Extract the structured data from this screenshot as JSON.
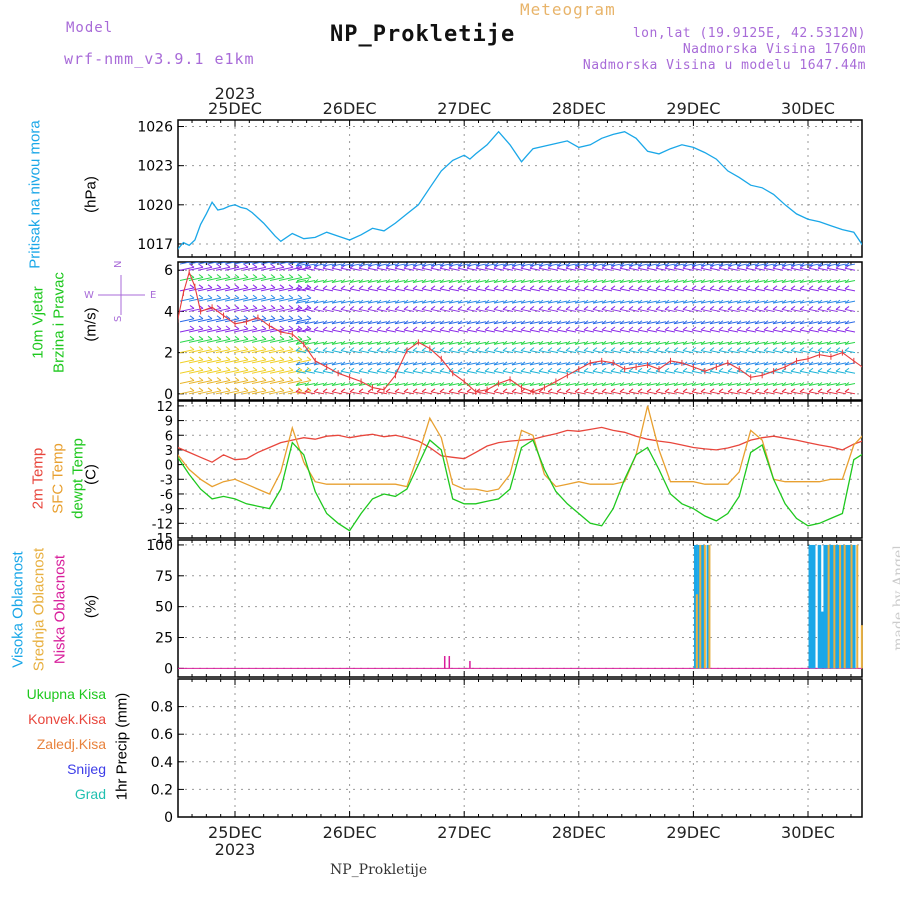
{
  "header": {
    "model_label": "Model",
    "model_name": "wrf-nmm_v3.9.1 e1km",
    "title": "NP_Prokletije",
    "meteogram_label": "Meteogram",
    "lonlat": "lon,lat (19.9125E, 42.5312N)",
    "altitude": "Nadmorska Visina 1760m",
    "model_altitude": "Nadmorska Visina u modelu 1647.44m"
  },
  "time_axis": {
    "year": "2023",
    "day_labels": [
      "25DEC",
      "26DEC",
      "27DEC",
      "28DEC",
      "29DEC",
      "30DEC"
    ]
  },
  "footer": "NP_Prokletije",
  "watermark": "made by Angel",
  "colors": {
    "pressure": "#1aa7e8",
    "temp2m": "#e8463c",
    "sfc": "#e8a030",
    "dew": "#1ec81e",
    "high_cloud": "#1aa7e8",
    "mid_cloud": "#e8b040",
    "low_cloud": "#d81e9b",
    "purple": "#a86bd8",
    "wind_speed": "#e83c3c"
  },
  "chart_data": [
    {
      "type": "line",
      "panel": "pressure",
      "title": "",
      "ylabel_lines": [
        "Pritisak na nivou mora",
        "(hPa)"
      ],
      "ylim": [
        1016,
        1026.5
      ],
      "yticks": [
        1017,
        1020,
        1023,
        1026
      ],
      "grid": true,
      "xunit": "day index (0 = 25DEC 00UTC)",
      "x": [
        -0.5,
        -0.45,
        -0.4,
        -0.35,
        -0.3,
        -0.25,
        -0.2,
        -0.15,
        -0.1,
        -0.05,
        0,
        0.05,
        0.1,
        0.15,
        0.2,
        0.25,
        0.3,
        0.35,
        0.4,
        0.5,
        0.6,
        0.7,
        0.8,
        0.9,
        1.0,
        1.1,
        1.2,
        1.3,
        1.4,
        1.5,
        1.6,
        1.7,
        1.8,
        1.9,
        2.0,
        2.05,
        2.1,
        2.2,
        2.3,
        2.4,
        2.5,
        2.55,
        2.6,
        2.7,
        2.8,
        2.9,
        3.0,
        3.1,
        3.2,
        3.3,
        3.4,
        3.5,
        3.6,
        3.7,
        3.8,
        3.9,
        4.0,
        4.1,
        4.2,
        4.3,
        4.4,
        4.5,
        4.6,
        4.7,
        4.8,
        4.9,
        5.0,
        5.1,
        5.2,
        5.3,
        5.4,
        5.5
      ],
      "values": [
        1016.6,
        1017.1,
        1016.9,
        1017.3,
        1018.5,
        1019.3,
        1020.2,
        1019.6,
        1019.7,
        1019.9,
        1020.0,
        1019.8,
        1019.7,
        1019.4,
        1019.0,
        1018.6,
        1018.1,
        1017.6,
        1017.2,
        1017.8,
        1017.4,
        1017.5,
        1017.9,
        1017.6,
        1017.3,
        1017.7,
        1018.2,
        1018.0,
        1018.6,
        1019.3,
        1020.0,
        1021.3,
        1022.6,
        1023.4,
        1023.8,
        1023.5,
        1023.9,
        1024.6,
        1025.6,
        1024.6,
        1023.3,
        1023.8,
        1024.3,
        1024.5,
        1024.7,
        1024.9,
        1024.4,
        1024.6,
        1025.1,
        1025.4,
        1025.6,
        1025.1,
        1024.1,
        1023.9,
        1024.3,
        1024.6,
        1024.4,
        1024.0,
        1023.5,
        1022.6,
        1022.1,
        1021.5,
        1021.3,
        1020.8,
        1020.0,
        1019.3,
        1018.9,
        1018.7,
        1018.4,
        1018.1,
        1017.9,
        1016.6
      ]
    },
    {
      "type": "line",
      "panel": "wind",
      "title": "",
      "ylabel_lines": [
        "10m Vjetar",
        "Brzina i Pravac",
        "(m/s)"
      ],
      "compass": {
        "n": "N",
        "s": "S",
        "e": "E",
        "w": "W"
      },
      "ylim": [
        -0.3,
        6.4
      ],
      "yticks": [
        0,
        2,
        4,
        6
      ],
      "grid": true,
      "series": [
        {
          "x": [
            -0.5,
            -0.45,
            -0.4,
            -0.35,
            -0.3,
            -0.2,
            -0.1,
            0,
            0.1,
            0.2,
            0.3,
            0.4,
            0.5,
            0.6,
            0.7,
            0.8,
            0.9,
            1.0,
            1.1,
            1.2,
            1.3,
            1.4,
            1.5,
            1.6,
            1.7,
            1.8,
            1.9,
            2.0,
            2.1,
            2.2,
            2.3,
            2.4,
            2.5,
            2.6,
            2.7,
            2.8,
            2.9,
            3.0,
            3.1,
            3.2,
            3.3,
            3.4,
            3.5,
            3.6,
            3.7,
            3.8,
            3.9,
            4.0,
            4.1,
            4.2,
            4.3,
            4.4,
            4.5,
            4.6,
            4.7,
            4.8,
            4.9,
            5.0,
            5.1,
            5.2,
            5.3,
            5.4,
            5.5
          ],
          "values": [
            3.6,
            4.9,
            5.9,
            5.2,
            4.0,
            4.2,
            3.8,
            3.4,
            3.5,
            3.7,
            3.3,
            3.0,
            2.9,
            2.4,
            1.6,
            1.3,
            1.0,
            0.8,
            0.6,
            0.3,
            0.2,
            0.9,
            2.1,
            2.5,
            2.2,
            1.7,
            1.0,
            0.6,
            0.1,
            0.2,
            0.5,
            0.7,
            0.3,
            0.1,
            0.3,
            0.6,
            0.9,
            1.2,
            1.5,
            1.6,
            1.5,
            1.2,
            1.3,
            1.4,
            1.2,
            1.6,
            1.5,
            1.3,
            1.1,
            1.3,
            1.5,
            1.2,
            0.8,
            0.9,
            1.1,
            1.3,
            1.6,
            1.7,
            1.9,
            1.8,
            2.0,
            1.6,
            1.2
          ]
        }
      ]
    },
    {
      "type": "line",
      "panel": "temperature",
      "title": "",
      "ylabel_lines": [
        "2m Temp",
        "SFC Temp",
        "dewpt Temp",
        "(C)"
      ],
      "ylim": [
        -15,
        13
      ],
      "yticks": [
        -15,
        -12,
        -9,
        -6,
        -3,
        0,
        3,
        6,
        9,
        12
      ],
      "grid": true,
      "x": [
        -0.5,
        -0.4,
        -0.3,
        -0.2,
        -0.1,
        0,
        0.1,
        0.2,
        0.3,
        0.4,
        0.5,
        0.6,
        0.7,
        0.8,
        0.9,
        1.0,
        1.1,
        1.2,
        1.3,
        1.4,
        1.5,
        1.6,
        1.7,
        1.8,
        1.9,
        2.0,
        2.1,
        2.2,
        2.3,
        2.4,
        2.5,
        2.6,
        2.7,
        2.8,
        2.9,
        3.0,
        3.1,
        3.2,
        3.3,
        3.4,
        3.5,
        3.6,
        3.7,
        3.8,
        3.9,
        4.0,
        4.1,
        4.2,
        4.3,
        4.4,
        4.5,
        4.6,
        4.7,
        4.8,
        4.9,
        5.0,
        5.1,
        5.2,
        5.3,
        5.4,
        5.5
      ],
      "series": [
        {
          "name": "2m Temp",
          "values": [
            3.5,
            2.5,
            1.5,
            0.5,
            2.0,
            1.0,
            1.2,
            2.5,
            3.5,
            4.5,
            5.0,
            5.5,
            5.2,
            5.8,
            6.0,
            5.5,
            5.9,
            6.2,
            5.7,
            6.0,
            5.5,
            4.8,
            3.5,
            1.8,
            1.5,
            1.2,
            2.5,
            3.8,
            4.5,
            4.8,
            5.0,
            5.2,
            5.8,
            6.3,
            7.0,
            6.8,
            7.2,
            7.6,
            7.0,
            6.6,
            5.8,
            5.2,
            4.8,
            4.5,
            4.0,
            3.5,
            3.2,
            3.0,
            3.4,
            4.0,
            5.0,
            5.5,
            5.8,
            5.4,
            5.0,
            4.5,
            4.0,
            3.6,
            3.0,
            4.2,
            5.0
          ]
        },
        {
          "name": "SFC Temp",
          "values": [
            2.0,
            -1.0,
            -3.0,
            -4.5,
            -3.5,
            -3.0,
            -4.0,
            -5.0,
            -6.0,
            -1.5,
            7.5,
            0.5,
            -3.5,
            -4.0,
            -4.0,
            -4.0,
            -4.0,
            -4.0,
            -4.0,
            -4.0,
            -4.5,
            2.0,
            9.5,
            5.5,
            -4.0,
            -5.0,
            -5.0,
            -5.5,
            -5.0,
            -2.0,
            7.0,
            6.0,
            -2.0,
            -4.5,
            -4.0,
            -3.5,
            -4.0,
            -4.0,
            -4.0,
            -3.5,
            2.0,
            12.0,
            3.0,
            -3.5,
            -3.5,
            -3.5,
            -4.0,
            -4.0,
            -4.0,
            -1.5,
            7.0,
            5.0,
            -3.0,
            -3.5,
            -3.5,
            -3.5,
            -3.5,
            -3.0,
            -3.0,
            4.0,
            6.5
          ]
        },
        {
          "name": "dewpt Temp",
          "values": [
            1.5,
            -2.0,
            -5.0,
            -7.0,
            -6.5,
            -7.0,
            -8.0,
            -8.5,
            -9.0,
            -5.0,
            4.5,
            2.0,
            -5.5,
            -10.0,
            -12.0,
            -13.5,
            -10.0,
            -7.0,
            -6.0,
            -6.5,
            -5.0,
            0.0,
            5.0,
            3.0,
            -7.0,
            -8.0,
            -8.0,
            -7.5,
            -7.0,
            -5.0,
            3.5,
            5.0,
            -1.0,
            -5.5,
            -8.0,
            -10.0,
            -12.0,
            -12.5,
            -9.0,
            -3.0,
            2.0,
            3.5,
            -1.0,
            -6.0,
            -8.0,
            -9.0,
            -10.5,
            -11.5,
            -10.0,
            -6.5,
            2.5,
            4.0,
            -3.0,
            -8.0,
            -11.0,
            -12.5,
            -12.0,
            -11.0,
            -10.0,
            1.0,
            2.5
          ]
        }
      ]
    },
    {
      "type": "bar",
      "panel": "cloud",
      "title": "",
      "ylabel_lines": [
        "Visoka Oblacnost",
        "Srednja Oblacnost",
        "Niska Oblacnost",
        "(%)"
      ],
      "ylim": [
        -7,
        104
      ],
      "yticks": [
        0,
        25,
        50,
        75,
        100
      ],
      "grid": true,
      "series": [
        {
          "name": "Visoka Oblacnost",
          "x": [
            4.02,
            4.05,
            4.08,
            4.13,
            5.02,
            5.05,
            5.1,
            5.12,
            5.15,
            5.17,
            5.2,
            5.22,
            5.25,
            5.27,
            5.3,
            5.33,
            5.36,
            5.4
          ],
          "values": [
            100,
            100,
            100,
            100,
            100,
            100,
            100,
            46,
            100,
            100,
            100,
            100,
            100,
            100,
            100,
            100,
            100,
            100
          ]
        },
        {
          "name": "Srednja Oblacnost",
          "x": [
            4.03,
            4.06,
            4.1,
            4.14,
            5.18,
            5.23,
            5.28,
            5.32,
            5.38,
            5.43,
            5.47
          ],
          "values": [
            60,
            100,
            100,
            100,
            100,
            100,
            100,
            100,
            100,
            100,
            35
          ]
        },
        {
          "name": "Niska Oblacnost",
          "x": [
            1.83,
            1.87,
            2.05
          ],
          "values": [
            10,
            10,
            6
          ]
        }
      ]
    },
    {
      "type": "bar",
      "panel": "precip",
      "title": "",
      "ylabel_lines": [
        "1hr Precip (mm)"
      ],
      "legend": [
        "Ukupna Kisa",
        "Konvek.Kisa",
        "Zaledj.Kisa",
        "Snijeg",
        "Grad"
      ],
      "ylim": [
        0,
        1.0
      ],
      "yticks": [
        0,
        0.2,
        0.4,
        0.6,
        0.8
      ],
      "grid": true,
      "values": []
    }
  ]
}
